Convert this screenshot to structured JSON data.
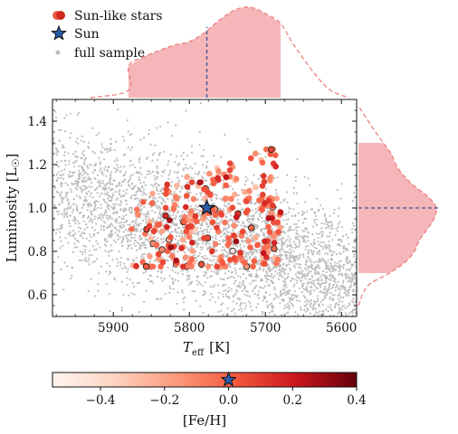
{
  "chart_data": {
    "type": "scatter",
    "xlabel": "T_eff [K]",
    "xlabel_main": "T",
    "xlabel_sub": "eff",
    "xlabel_unit": "[K]",
    "ylabel": "Luminosity [L☉]",
    "ylabel_main": "Luminosity [L",
    "ylabel_sun": "☉",
    "ylabel_close": "]",
    "xlim": [
      5980,
      5580
    ],
    "ylim": [
      0.5,
      1.5
    ],
    "x_inverted": true,
    "xticks": [
      5900,
      5800,
      5700,
      5600
    ],
    "xtick_labels": [
      "5900",
      "5800",
      "5700",
      "5600"
    ],
    "yticks": [
      0.6,
      0.8,
      1.0,
      1.2,
      1.4
    ],
    "ytick_labels": [
      "0.6",
      "0.8",
      "1.0",
      "1.2",
      "1.4"
    ],
    "legend": {
      "placement": "above-top-left",
      "entries": [
        {
          "label": "Sun-like stars",
          "marker": "red-circles"
        },
        {
          "label": "Sun",
          "marker": "blue-star"
        },
        {
          "label": "full sample",
          "marker": "gray-dot"
        }
      ]
    },
    "sun": {
      "teff": 5777,
      "luminosity": 1.0,
      "feh": 0.0
    },
    "selection_box": {
      "teff": [
        5880,
        5680
      ],
      "luminosity": [
        0.7,
        1.3
      ]
    },
    "full_sample_trend": {
      "x": [
        5980,
        5900,
        5800,
        5700,
        5600
      ],
      "y": [
        1.08,
        1.0,
        0.9,
        0.78,
        0.66
      ],
      "spread": 0.16
    },
    "marginal_teff": {
      "range": [
        5880,
        5680
      ],
      "x": [
        5880,
        5860,
        5840,
        5820,
        5800,
        5780,
        5760,
        5740,
        5720,
        5700,
        5680
      ],
      "density": [
        0.35,
        0.45,
        0.52,
        0.58,
        0.62,
        0.72,
        0.86,
        0.97,
        1.0,
        0.93,
        0.82
      ],
      "median": 5777
    },
    "marginal_lum": {
      "range": [
        0.7,
        1.3
      ],
      "y": [
        0.7,
        0.75,
        0.8,
        0.85,
        0.9,
        0.95,
        1.0,
        1.05,
        1.1,
        1.15,
        1.2,
        1.25,
        1.3
      ],
      "density": [
        0.4,
        0.6,
        0.72,
        0.78,
        0.88,
        0.97,
        1.0,
        0.9,
        0.72,
        0.58,
        0.48,
        0.42,
        0.32
      ],
      "median": 1.0
    },
    "colorbar": {
      "label": "[Fe/H]",
      "range": [
        -0.55,
        0.4
      ],
      "ticks": [
        -0.4,
        -0.2,
        0.0,
        0.2,
        0.4
      ],
      "tick_labels": [
        "−0.4",
        "−0.2",
        "0.0",
        "0.2",
        "0.4"
      ],
      "colormap": "Reds",
      "sun_marker": 0.0
    },
    "sun_like_stars_count": 260,
    "full_sample_count": 3600
  },
  "colors": {
    "sun_like_high": "#67000d",
    "sun_like_mid": "#ef3b2c",
    "sun_like_low": "#fcbba1",
    "sun": "#2a5caa",
    "full_sample": "#bdbdbd",
    "marginal_fill": "#f4b6b8",
    "marginal_line": "#f08080",
    "median_line": "#3a4f9a"
  }
}
